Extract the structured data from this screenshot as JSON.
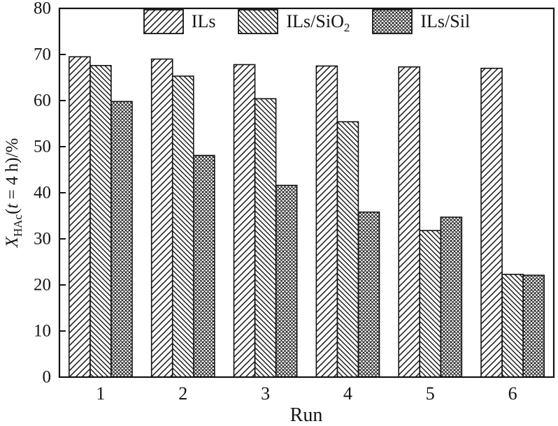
{
  "style": {
    "ink": "#141414",
    "background": "#ffffff",
    "bar_fill": "#ffffff"
  },
  "axis": {
    "yticks": [
      "0",
      "10",
      "20",
      "30",
      "40",
      "50",
      "60",
      "70",
      "80"
    ]
  },
  "chart_data": {
    "type": "bar",
    "title": "",
    "xlabel": "Run",
    "ylabel": "X_HAc(t = 4 h)/%",
    "ylabel_rich": [
      {
        "text": "X",
        "style": "italic"
      },
      {
        "text": "HAc",
        "style": "sub"
      },
      {
        "text": "(",
        "style": "normal"
      },
      {
        "text": "t",
        "style": "italic"
      },
      {
        "text": " = 4 h)/%",
        "style": "normal"
      }
    ],
    "categories": [
      "1",
      "2",
      "3",
      "4",
      "5",
      "6"
    ],
    "series": [
      {
        "name": "ILs",
        "hatch": "forward-diagonal",
        "values": [
          69.5,
          69.0,
          67.8,
          67.5,
          67.3,
          67.0
        ]
      },
      {
        "name": "ILs/SiO₂",
        "hatch": "backward-diagonal",
        "values": [
          67.6,
          65.3,
          60.4,
          55.4,
          31.8,
          22.3
        ]
      },
      {
        "name": "ILs/Sil",
        "hatch": "crosshatch",
        "values": [
          59.8,
          48.1,
          41.6,
          35.8,
          34.7,
          22.1
        ]
      }
    ],
    "ylim": [
      0,
      80
    ],
    "ytick_step": 10,
    "grid": false,
    "legend_position": "top-center",
    "frame": "full-box"
  }
}
